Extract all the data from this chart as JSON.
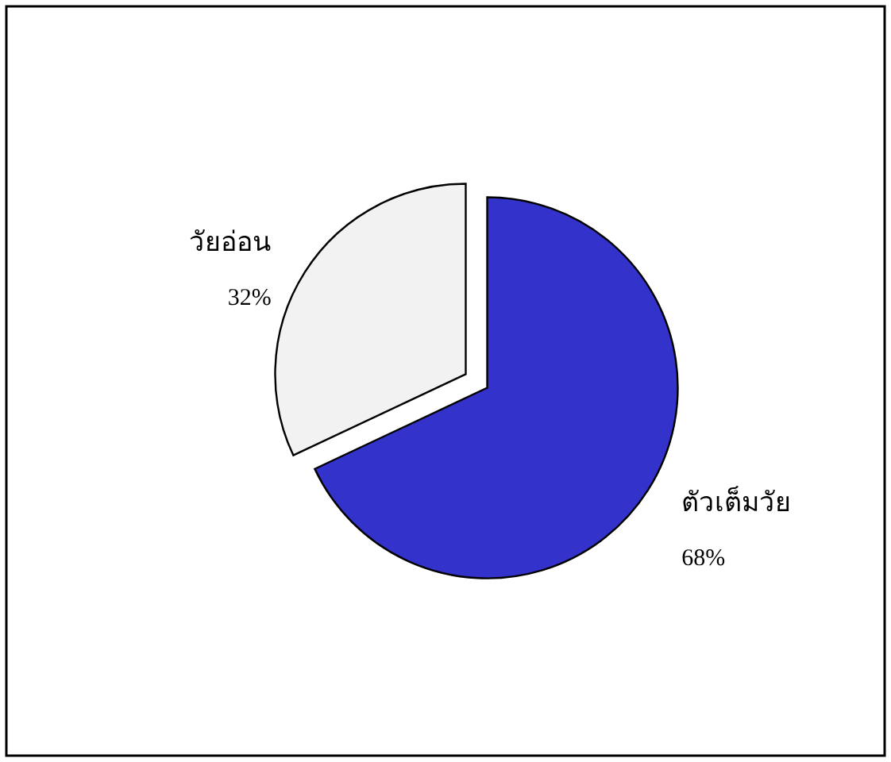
{
  "chart_data": {
    "type": "pie",
    "categories": [
      "ตัวเต็มวัย",
      "วัยอ่อน"
    ],
    "values": [
      68,
      32
    ],
    "colors": [
      "#3333cc",
      "#f2f2f2"
    ],
    "value_labels": [
      "68%",
      "32%"
    ]
  }
}
